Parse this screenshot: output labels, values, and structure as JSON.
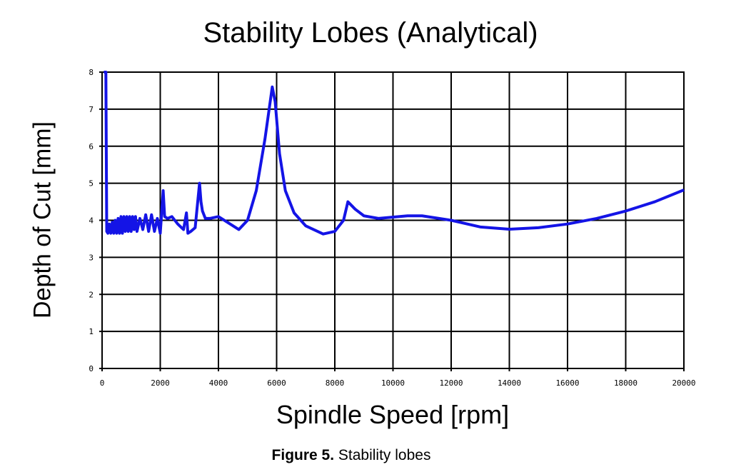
{
  "chart_data": {
    "type": "line",
    "title": "Stability Lobes (Analytical)",
    "xlabel": "Spindle Speed [rpm]",
    "ylabel": "Depth of Cut [mm]",
    "xlim": [
      0,
      20000
    ],
    "ylim": [
      0,
      8
    ],
    "xticks": [
      0,
      2000,
      4000,
      6000,
      8000,
      10000,
      12000,
      14000,
      16000,
      18000,
      20000
    ],
    "yticks": [
      0,
      1,
      2,
      3,
      4,
      5,
      6,
      7,
      8
    ],
    "grid": true,
    "line_color": "#1414e6",
    "series": [
      {
        "x": [
          60,
          100,
          130,
          160,
          200,
          250,
          300,
          350,
          400,
          450,
          500,
          550,
          600,
          650,
          700,
          750,
          800,
          850,
          900,
          950,
          1000,
          1050,
          1100,
          1150,
          1200,
          1300,
          1400,
          1500,
          1600,
          1700,
          1800,
          1900,
          2000,
          2100,
          2150,
          2250,
          2400,
          2600,
          2800,
          2900,
          2950,
          3050,
          3200,
          3350,
          3400,
          3450,
          3550,
          3700,
          4000,
          4300,
          4700,
          5000,
          5300,
          5600,
          5850,
          5950,
          6100,
          6300,
          6600,
          7000,
          7600,
          8000,
          8300,
          8450,
          8700,
          9000,
          9500,
          10500,
          11000,
          12000,
          13000,
          14000,
          15000,
          16000,
          17000,
          18000,
          19000,
          20000
        ],
        "y": [
          8,
          8,
          8,
          3.7,
          3.65,
          3.9,
          3.65,
          3.95,
          3.65,
          4.0,
          3.65,
          4.05,
          3.65,
          4.1,
          3.65,
          4.1,
          3.7,
          4.1,
          3.7,
          4.1,
          3.7,
          4.1,
          3.75,
          4.1,
          3.7,
          4.05,
          3.75,
          4.15,
          3.7,
          4.15,
          3.7,
          4.05,
          3.65,
          4.8,
          4.1,
          4.05,
          4.1,
          3.9,
          3.75,
          4.2,
          3.65,
          3.7,
          3.8,
          5.0,
          4.5,
          4.25,
          4.05,
          4.05,
          4.1,
          3.95,
          3.75,
          4.0,
          4.8,
          6.2,
          7.6,
          7.2,
          5.8,
          4.8,
          4.2,
          3.85,
          3.63,
          3.7,
          4.0,
          4.5,
          4.3,
          4.12,
          4.05,
          4.12,
          4.12,
          4.0,
          3.82,
          3.76,
          3.8,
          3.9,
          4.05,
          4.25,
          4.5,
          4.82
        ]
      }
    ]
  },
  "caption": {
    "label": "Figure 5.",
    "text": " Stability lobes"
  }
}
